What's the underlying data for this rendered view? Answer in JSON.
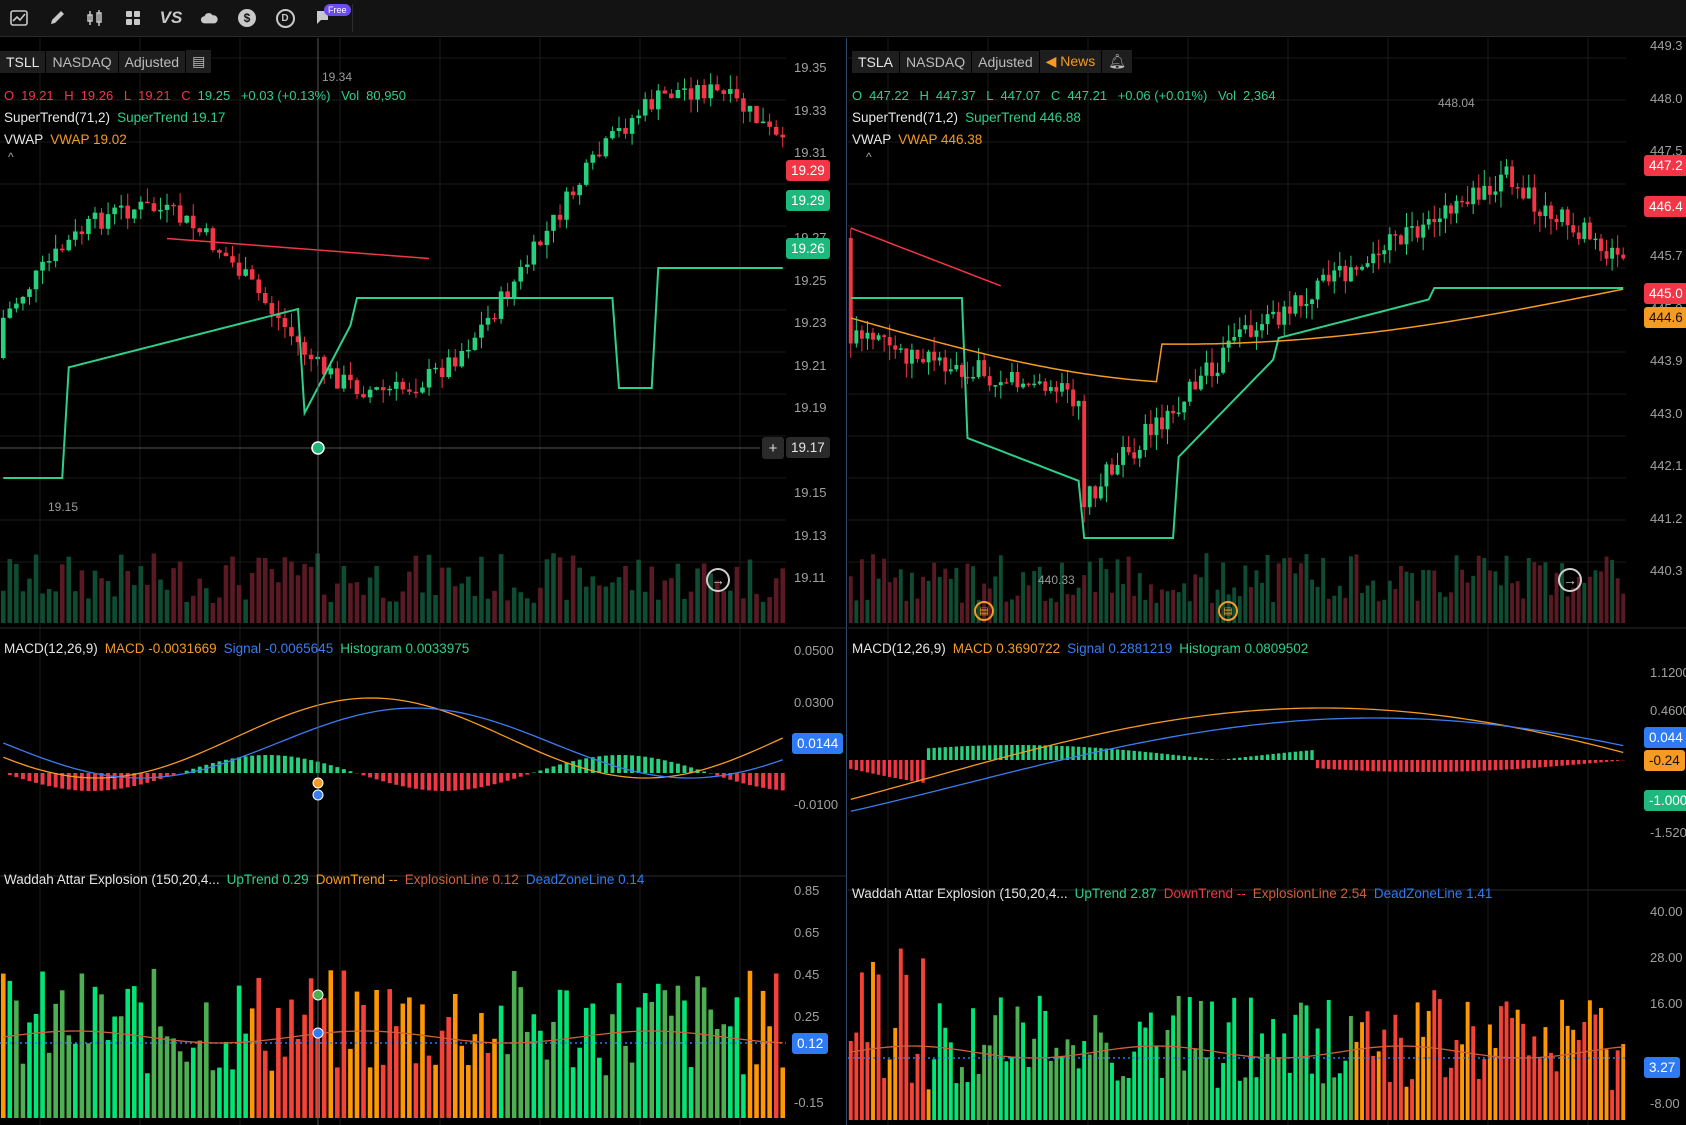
{
  "toolbar": {
    "icons": [
      "chart-icon",
      "pencil-icon",
      "studies-icon",
      "grid-icon",
      "vs-icon",
      "cloud-icon",
      "dollar-icon",
      "d-icon",
      "flag-icon"
    ],
    "vs_label": "VS",
    "dollar_label": "$",
    "d_label": "D",
    "free_badge": "Free"
  },
  "left": {
    "symbol": "TSLL",
    "exchange": "NASDAQ",
    "adjusted": "Adjusted",
    "ohlc": {
      "o_label": "O",
      "o": "19.21",
      "h_label": "H",
      "h": "19.26",
      "l_label": "L",
      "l": "19.21",
      "c_label": "C",
      "c": "19.25",
      "change": "+0.03 (+0.13%)",
      "vol_label": "Vol",
      "vol": "80,950"
    },
    "supertrend": {
      "name": "SuperTrend(71,2)",
      "value": "SuperTrend 19.17"
    },
    "vwap": {
      "name": "VWAP",
      "value": "VWAP 19.02"
    },
    "high_marker": "19.34",
    "low_marker": "19.15",
    "price_axis": [
      "19.35",
      "19.33",
      "19.31",
      "19.29",
      "19.27",
      "19.25",
      "19.23",
      "19.21",
      "19.19",
      "19.17",
      "19.15",
      "19.13",
      "19.11"
    ],
    "tags": {
      "red": "19.29",
      "green": "19.29",
      "supertrend": "19.26",
      "crosshair": "19.17"
    },
    "macd": {
      "name": "MACD(12,26,9)",
      "macd": "MACD -0.0031669",
      "signal": "Signal -0.0065645",
      "hist": "Histogram 0.0033975",
      "axis": [
        "0.0500",
        "0.0300",
        "-0.0100"
      ],
      "tag": "0.0144"
    },
    "wae": {
      "name": "Waddah Attar Explosion (150,20,4...",
      "up": "UpTrend 0.29",
      "down": "DownTrend --",
      "explosion": "ExplosionLine 0.12",
      "deadzone": "DeadZoneLine 0.14",
      "axis": [
        "0.85",
        "0.65",
        "0.45",
        "0.25",
        "-0.15"
      ],
      "tag": "0.12"
    }
  },
  "right": {
    "symbol": "TSLA",
    "exchange": "NASDAQ",
    "adjusted": "Adjusted",
    "news": "News",
    "ohlc": {
      "o_label": "O",
      "o": "447.22",
      "h_label": "H",
      "h": "447.37",
      "l_label": "L",
      "l": "447.07",
      "c_label": "C",
      "c": "447.21",
      "change": "+0.06 (+0.01%)",
      "vol_label": "Vol",
      "vol": "2,364"
    },
    "supertrend": {
      "name": "SuperTrend(71,2)",
      "value": "SuperTrend 446.88"
    },
    "vwap": {
      "name": "VWAP",
      "value": "VWAP 446.38"
    },
    "high_marker": "448.04",
    "low_marker": "440.33",
    "price_axis": [
      "449.3",
      "448.0",
      "447.5",
      "446.4",
      "445.7",
      "445.0",
      "443.9",
      "443.0",
      "442.1",
      "441.2",
      "440.3"
    ],
    "tags": {
      "red1": "447.2",
      "red2": "446.4",
      "red3": "445.0",
      "orange": "444.6"
    },
    "macd": {
      "name": "MACD(12,26,9)",
      "macd": "MACD 0.3690722",
      "signal": "Signal 0.2881219",
      "hist": "Histogram 0.0809502",
      "axis": [
        "1.1200",
        "0.4600",
        "-1.5200"
      ],
      "tags": {
        "blue": "0.044",
        "orange": "-0.24",
        "green": "-1.000"
      }
    },
    "wae": {
      "name": "Waddah Attar Explosion (150,20,4...",
      "up": "UpTrend 2.87",
      "down": "DownTrend --",
      "explosion": "ExplosionLine 2.54",
      "deadzone": "DeadZoneLine 1.41",
      "axis": [
        "40.00",
        "28.00",
        "16.00",
        "-8.00"
      ],
      "tag": "3.27"
    }
  },
  "colors": {
    "up": "#26d07c",
    "down": "#f23645",
    "supertrend_up": "#2ecf8a",
    "supertrend_down": "#f23645",
    "vwap": "#f59a23",
    "signal": "#3d7cf0",
    "wae_up_strong": "#00e676",
    "wae_up": "#4caf50",
    "wae_down_strong": "#f44336",
    "wae_down": "#ff9800"
  }
}
